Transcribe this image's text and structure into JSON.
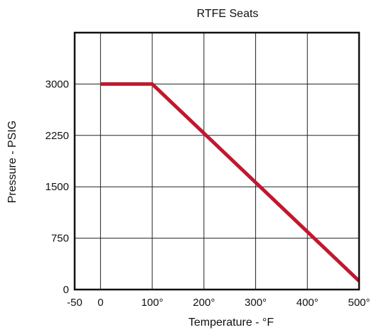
{
  "chart_data": {
    "type": "line",
    "title": "RTFE Seats",
    "xlabel": "Temperature - °F",
    "ylabel": "Pressure - PSIG",
    "xlim": [
      -50,
      500
    ],
    "ylim": [
      0,
      3750
    ],
    "x_ticks": [
      {
        "value": -50,
        "label": "-50"
      },
      {
        "value": 0,
        "label": "0"
      },
      {
        "value": 100,
        "label": "100°"
      },
      {
        "value": 200,
        "label": "200°"
      },
      {
        "value": 300,
        "label": "300°"
      },
      {
        "value": 400,
        "label": "400°"
      },
      {
        "value": 500,
        "label": "500°"
      }
    ],
    "y_ticks": [
      {
        "value": 0,
        "label": "0"
      },
      {
        "value": 750,
        "label": "750"
      },
      {
        "value": 1500,
        "label": "1500"
      },
      {
        "value": 2250,
        "label": "2250"
      },
      {
        "value": 3000,
        "label": "3000"
      }
    ],
    "grid": true,
    "series": [
      {
        "color": "#c0182f",
        "points": [
          {
            "x": 0,
            "y": 3000
          },
          {
            "x": 100,
            "y": 3000
          },
          {
            "x": 500,
            "y": 125
          }
        ]
      }
    ]
  }
}
